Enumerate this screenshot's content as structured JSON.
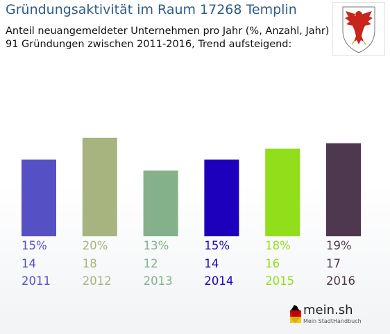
{
  "header": {
    "title": "Gründungsaktivität im Raum 17268 Templin",
    "subtitle_line1": "Anteil neuangemeldeter Unternehmen pro Jahr (%, Anzahl, Jahr)",
    "subtitle_line2": "91 Gründungen zwischen 2011-2016, Trend aufsteigend:"
  },
  "crest": {
    "icon": "brandenburg-eagle-crest-icon"
  },
  "logo": {
    "name": "mein.sh",
    "tagline": "Mein StadtHandbuch",
    "icon": "germany-map-icon"
  },
  "chart_data": {
    "type": "bar",
    "categories": [
      "2011",
      "2012",
      "2013",
      "2014",
      "2015",
      "2016"
    ],
    "values": [
      14,
      18,
      12,
      14,
      16,
      17
    ],
    "percent_labels": [
      "15%",
      "20%",
      "13%",
      "15%",
      "18%",
      "19%"
    ],
    "colors": [
      "#5550c4",
      "#a7b47f",
      "#84b08a",
      "#1c00bb",
      "#91de1a",
      "#4e3850"
    ],
    "grid": false,
    "legend": "none"
  }
}
